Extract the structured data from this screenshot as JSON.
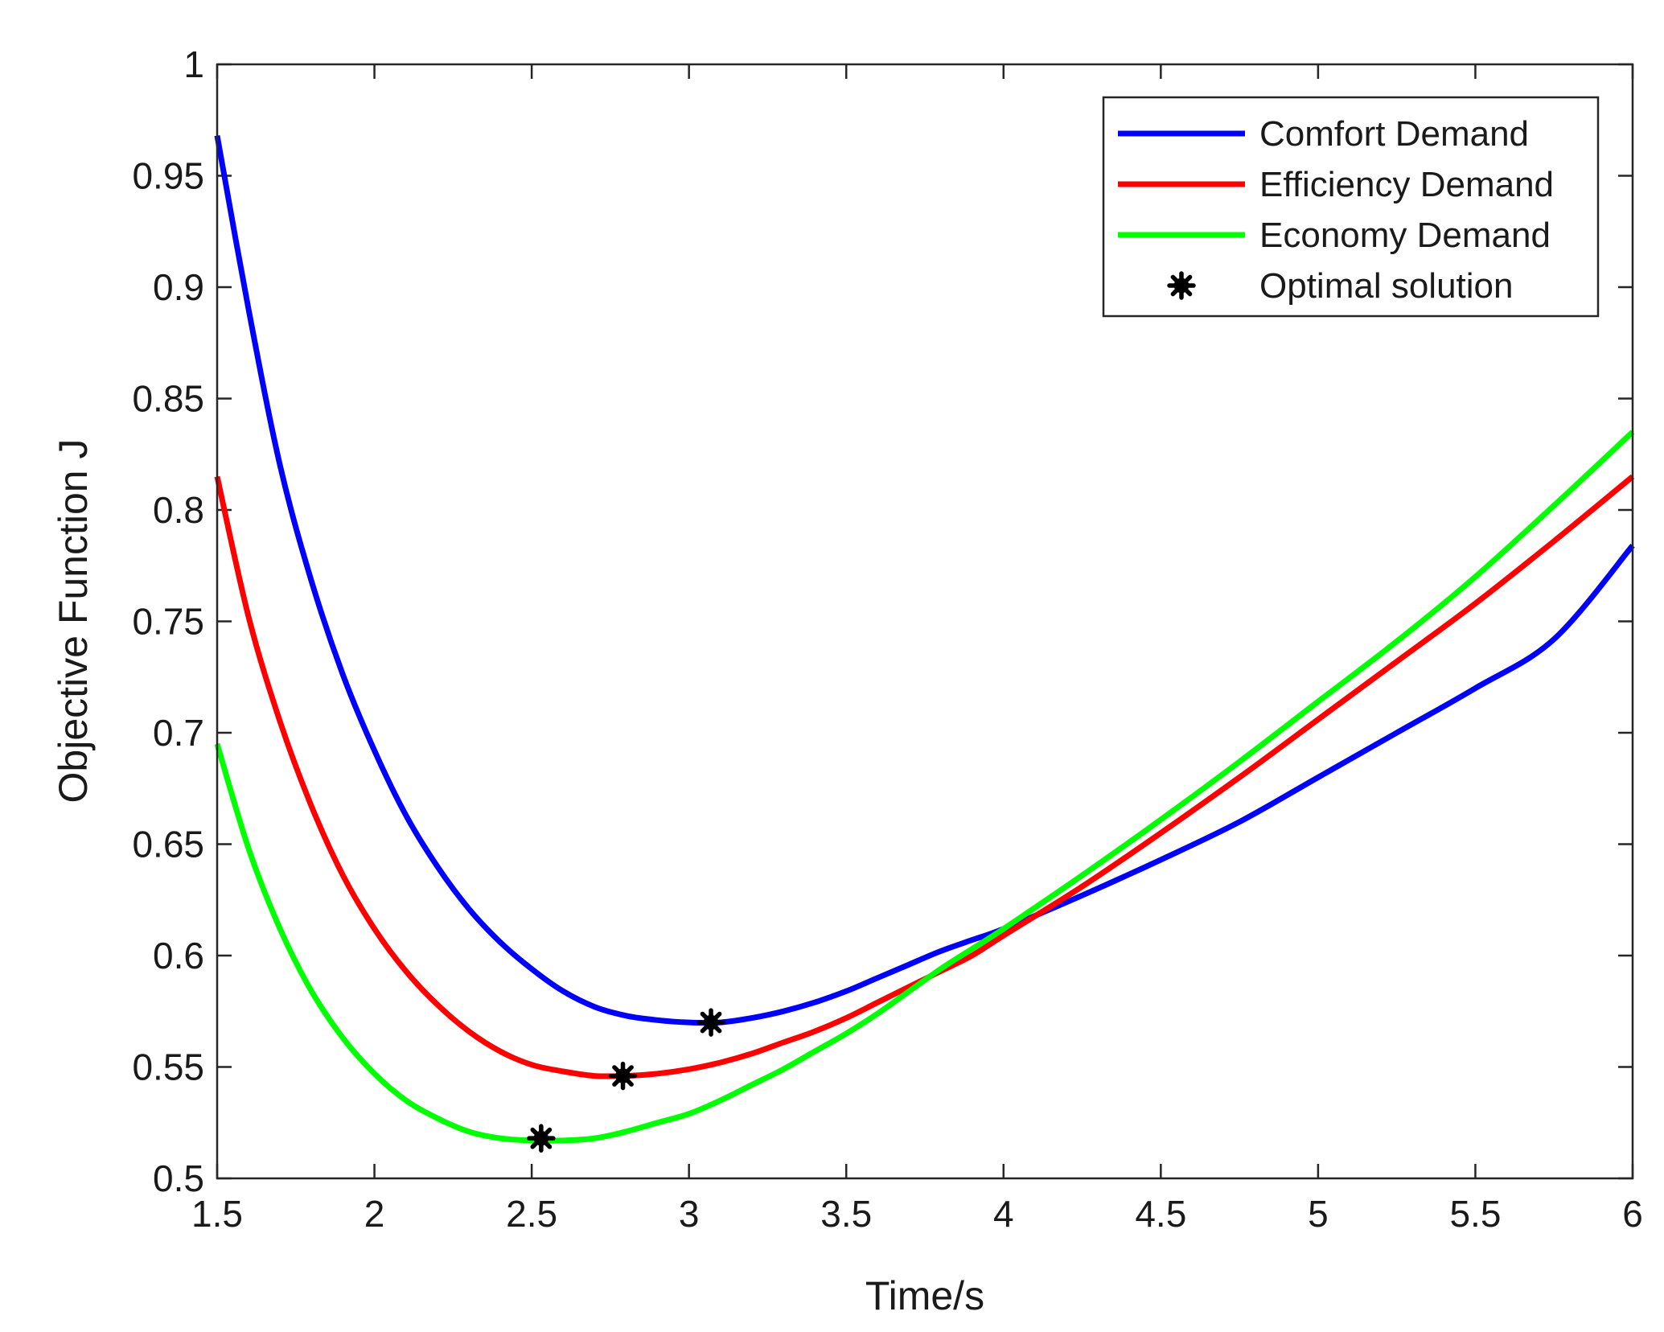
{
  "chart_data": {
    "type": "line",
    "title": "",
    "xlabel": "Time/s",
    "ylabel": "Objective Function J",
    "xlim": [
      1.5,
      6
    ],
    "ylim": [
      0.5,
      1
    ],
    "xticks": [
      1.5,
      2,
      2.5,
      3,
      3.5,
      4,
      4.5,
      5,
      5.5,
      6
    ],
    "xtick_labels": [
      "1.5",
      "2",
      "2.5",
      "3",
      "3.5",
      "4",
      "4.5",
      "5",
      "5.5",
      "6"
    ],
    "yticks": [
      0.5,
      0.55,
      0.6,
      0.65,
      0.7,
      0.75,
      0.8,
      0.85,
      0.9,
      0.95,
      1
    ],
    "ytick_labels": [
      "0.5",
      "0.55",
      "0.6",
      "0.65",
      "0.7",
      "0.75",
      "0.8",
      "0.85",
      "0.9",
      "0.95",
      "1"
    ],
    "grid": false,
    "legend_position": "top-right",
    "series": [
      {
        "name": "Comfort Demand",
        "color": "#0000ff",
        "x": [
          1.5,
          1.6,
          1.7,
          1.8,
          1.9,
          2.0,
          2.1,
          2.2,
          2.3,
          2.4,
          2.5,
          2.6,
          2.7,
          2.8,
          2.9,
          3.0,
          3.1,
          3.2,
          3.3,
          3.4,
          3.5,
          3.6,
          3.7,
          3.8,
          3.9,
          4.0,
          4.25,
          4.5,
          4.75,
          5.0,
          5.25,
          5.5,
          5.75,
          6.0
        ],
        "y": [
          0.968,
          0.89,
          0.82,
          0.768,
          0.726,
          0.692,
          0.663,
          0.64,
          0.621,
          0.606,
          0.594,
          0.584,
          0.577,
          0.573,
          0.571,
          0.57,
          0.57,
          0.572,
          0.575,
          0.579,
          0.584,
          0.59,
          0.596,
          0.602,
          0.607,
          0.612,
          0.627,
          0.643,
          0.66,
          0.68,
          0.7,
          0.72,
          0.742,
          0.784
        ]
      },
      {
        "name": "Efficiency Demand",
        "color": "#ff0000",
        "x": [
          1.5,
          1.6,
          1.7,
          1.8,
          1.9,
          2.0,
          2.1,
          2.2,
          2.3,
          2.4,
          2.5,
          2.6,
          2.7,
          2.8,
          2.9,
          3.0,
          3.1,
          3.2,
          3.3,
          3.4,
          3.5,
          3.6,
          3.7,
          3.8,
          3.9,
          4.0,
          4.25,
          4.5,
          4.75,
          5.0,
          5.25,
          5.5,
          5.75,
          6.0
        ],
        "y": [
          0.815,
          0.752,
          0.705,
          0.667,
          0.636,
          0.612,
          0.593,
          0.578,
          0.566,
          0.557,
          0.551,
          0.548,
          0.546,
          0.546,
          0.547,
          0.549,
          0.552,
          0.556,
          0.561,
          0.566,
          0.572,
          0.579,
          0.586,
          0.593,
          0.6,
          0.609,
          0.631,
          0.655,
          0.68,
          0.706,
          0.732,
          0.758,
          0.786,
          0.815
        ]
      },
      {
        "name": "Economy Demand",
        "color": "#00ff00",
        "x": [
          1.5,
          1.6,
          1.7,
          1.8,
          1.9,
          2.0,
          2.1,
          2.2,
          2.3,
          2.4,
          2.5,
          2.6,
          2.7,
          2.8,
          2.9,
          3.0,
          3.1,
          3.2,
          3.3,
          3.4,
          3.5,
          3.6,
          3.7,
          3.8,
          3.9,
          4.0,
          4.25,
          4.5,
          4.75,
          5.0,
          5.25,
          5.5,
          5.75,
          6.0
        ],
        "y": [
          0.695,
          0.648,
          0.612,
          0.584,
          0.563,
          0.547,
          0.535,
          0.527,
          0.521,
          0.518,
          0.517,
          0.517,
          0.518,
          0.521,
          0.525,
          0.529,
          0.535,
          0.542,
          0.549,
          0.557,
          0.565,
          0.574,
          0.584,
          0.594,
          0.603,
          0.612,
          0.636,
          0.661,
          0.687,
          0.714,
          0.741,
          0.77,
          0.802,
          0.835
        ]
      }
    ],
    "markers": {
      "name": "Optimal solution",
      "color": "#000000",
      "points": [
        {
          "x": 3.07,
          "y": 0.57
        },
        {
          "x": 2.79,
          "y": 0.546
        },
        {
          "x": 2.53,
          "y": 0.518
        }
      ]
    }
  }
}
